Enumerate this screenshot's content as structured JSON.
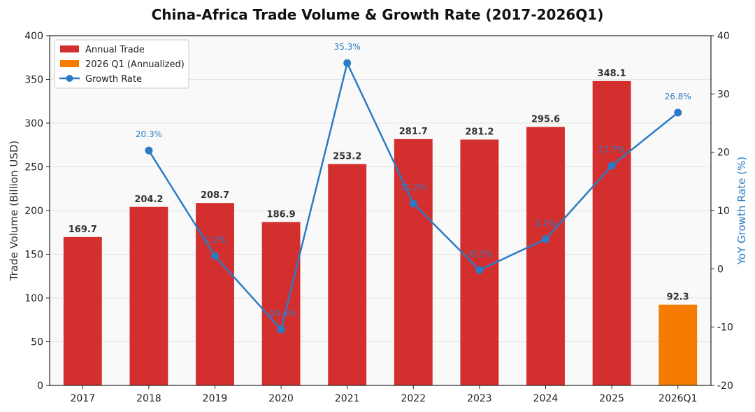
{
  "chart_data": {
    "type": "bar",
    "title": "China-Africa Trade Volume & Growth Rate (2017-2026Q1)",
    "categories": [
      "2017",
      "2018",
      "2019",
      "2020",
      "2021",
      "2022",
      "2023",
      "2024",
      "2025",
      "2026Q1"
    ],
    "ylabel": "Trade Volume (Billion USD)",
    "y2label": "YoY Growth Rate (%)",
    "ylim": [
      0,
      400
    ],
    "y2lim": [
      -20,
      40
    ],
    "yticks": [
      "0",
      "50",
      "100",
      "150",
      "200",
      "250",
      "300",
      "350",
      "400"
    ],
    "y2ticks": [
      "-20",
      "-10",
      "0",
      "10",
      "20",
      "30",
      "40"
    ],
    "grid": true,
    "legend_position": "top-left",
    "series": [
      {
        "name": "Annual Trade",
        "type": "bar",
        "color": "#d32f2f",
        "values": [
          169.7,
          204.2,
          208.7,
          186.9,
          253.2,
          281.7,
          281.2,
          295.6,
          348.1,
          null
        ],
        "labels": [
          "169.7",
          "204.2",
          "208.7",
          "186.9",
          "253.2",
          "281.7",
          "281.2",
          "295.6",
          "348.1",
          ""
        ]
      },
      {
        "name": "2026 Q1 (Annualized)",
        "type": "bar",
        "color": "#f57c00",
        "values": [
          null,
          null,
          null,
          null,
          null,
          null,
          null,
          null,
          null,
          92.3
        ],
        "labels": [
          "",
          "",
          "",
          "",
          "",
          "",
          "",
          "",
          "",
          "92.3"
        ]
      },
      {
        "name": "Growth Rate",
        "type": "line",
        "axis": "right",
        "color": "#2b7bc4",
        "values": [
          null,
          20.3,
          2.2,
          -10.4,
          35.3,
          11.2,
          -0.2,
          5.1,
          17.7,
          26.8
        ],
        "labels": [
          "",
          "20.3%",
          "2.2%",
          "-10.4%",
          "35.3%",
          "11.2%",
          "-0.2%",
          "5.1%",
          "17.7%",
          "26.8%"
        ]
      }
    ]
  }
}
